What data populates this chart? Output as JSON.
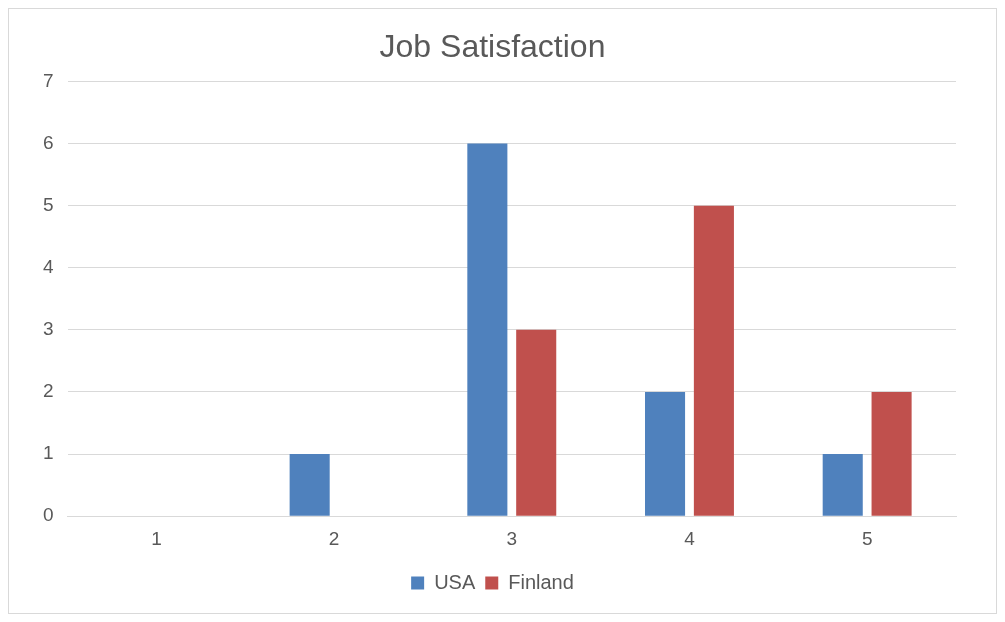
{
  "chart_data": {
    "type": "bar",
    "title": "Job Satisfaction",
    "categories": [
      "1",
      "2",
      "3",
      "4",
      "5"
    ],
    "series": [
      {
        "name": "USA",
        "color": "#4f81bd",
        "values": [
          0,
          1,
          6,
          2,
          1
        ]
      },
      {
        "name": "Finland",
        "color": "#c0504d",
        "values": [
          0,
          0,
          3,
          5,
          2
        ]
      }
    ],
    "ylim": [
      0,
      7
    ],
    "yticks": [
      0,
      1,
      2,
      3,
      4,
      5,
      6,
      7
    ],
    "grid": "y",
    "legend": "bottom"
  }
}
